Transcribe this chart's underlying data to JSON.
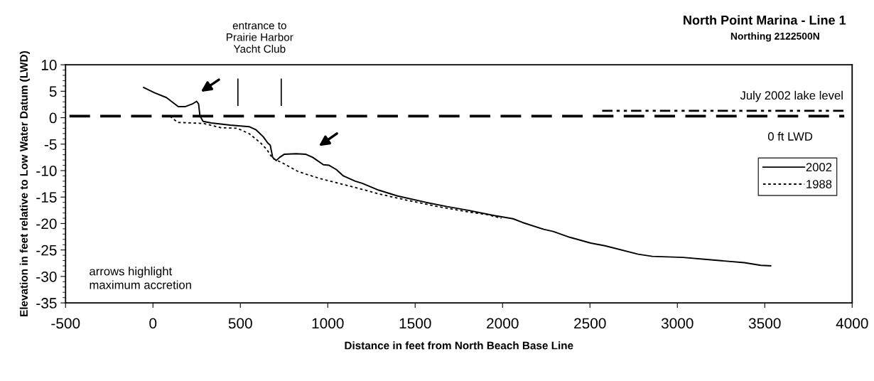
{
  "chart_data": {
    "type": "line",
    "title": "North Point Marina - Line 1",
    "subtitle": "Northing 2122500N",
    "xlabel": "Distance in feet from North Beach Base Line",
    "ylabel": "Elevation in feet relative to Low Water Datum (LWD)",
    "annotations": [
      "entrance to\nPrairie Harbor\nYacht Club",
      "arrows highlight\nmaximum accretion",
      {
        "text": "July 2002 lake level",
        "x": 3950,
        "y": 1.3
      }
    ],
    "series": [
      {
        "name": "2002",
        "color": "#000000",
        "line_style": "solid",
        "x": [
          -53,
          10,
          77,
          145,
          186,
          226,
          250,
          261,
          269,
          287,
          334,
          442,
          550,
          590,
          631,
          657,
          671,
          685,
          705,
          725,
          752,
          819,
          873,
          914,
          975,
          1008,
          1049,
          1089,
          1157,
          1197,
          1292,
          1400,
          1562,
          1683,
          1804,
          1953,
          2060,
          2114,
          2236,
          2290,
          2384,
          2505,
          2586,
          2776,
          2856,
          3032,
          3167,
          3383,
          3477,
          3534
        ],
        "values": [
          5.7,
          4.7,
          3.8,
          2.1,
          2.1,
          2.6,
          3.1,
          2.6,
          0.3,
          -0.7,
          -1.0,
          -1.4,
          -1.7,
          -2.3,
          -3.6,
          -4.8,
          -5.2,
          -7.5,
          -8.1,
          -7.5,
          -6.9,
          -6.8,
          -6.9,
          -7.5,
          -8.9,
          -9.0,
          -9.8,
          -11.0,
          -12.0,
          -12.4,
          -13.7,
          -14.8,
          -16.0,
          -16.8,
          -17.5,
          -18.5,
          -19.1,
          -19.8,
          -21.1,
          -21.5,
          -22.6,
          -23.7,
          -24.2,
          -25.8,
          -26.2,
          -26.4,
          -26.8,
          -27.4,
          -27.9,
          -28.0
        ]
      },
      {
        "name": "1988",
        "color": "#000000",
        "line_style": "dotted",
        "x": [
          98,
          118,
          145,
          226,
          293,
          388,
          482,
          550,
          617,
          651,
          685,
          738,
          826,
          860,
          955,
          1063,
          1170,
          1292,
          1440,
          1629,
          1804,
          1912,
          1993
        ],
        "values": [
          0.3,
          -0.3,
          -0.9,
          -1.0,
          -1.1,
          -1.9,
          -2.0,
          -3.0,
          -4.8,
          -6.0,
          -7.7,
          -8.5,
          -10.1,
          -10.5,
          -11.5,
          -12.4,
          -13.3,
          -14.4,
          -15.5,
          -16.8,
          -17.8,
          -18.3,
          -19.0
        ]
      },
      {
        "color": "#000000",
        "line_style": "dashdotdot",
        "x": [
          2570,
          3950
        ],
        "values": [
          1.3,
          1.3
        ]
      }
    ],
    "ref_lines": [
      {
        "axis": "y",
        "value": 0.3,
        "label": "0 ft LWD",
        "line_style": "dashed",
        "color": "#000000"
      },
      {
        "axis": "x",
        "value": 486,
        "color": "#000000",
        "line_style": "solid"
      },
      {
        "axis": "x",
        "value": 734,
        "color": "#000000",
        "line_style": "solid"
      }
    ],
    "xlim": [
      -500,
      4000
    ],
    "xticks": [
      -500,
      0,
      500,
      1000,
      1500,
      2000,
      2500,
      3000,
      3500,
      4000
    ],
    "ylim": [
      -35,
      10
    ],
    "yticks": [
      -35,
      -30,
      -25,
      -20,
      -15,
      -10,
      -5,
      0,
      5,
      10
    ],
    "grid": false,
    "legend": "right",
    "marker": "none"
  }
}
